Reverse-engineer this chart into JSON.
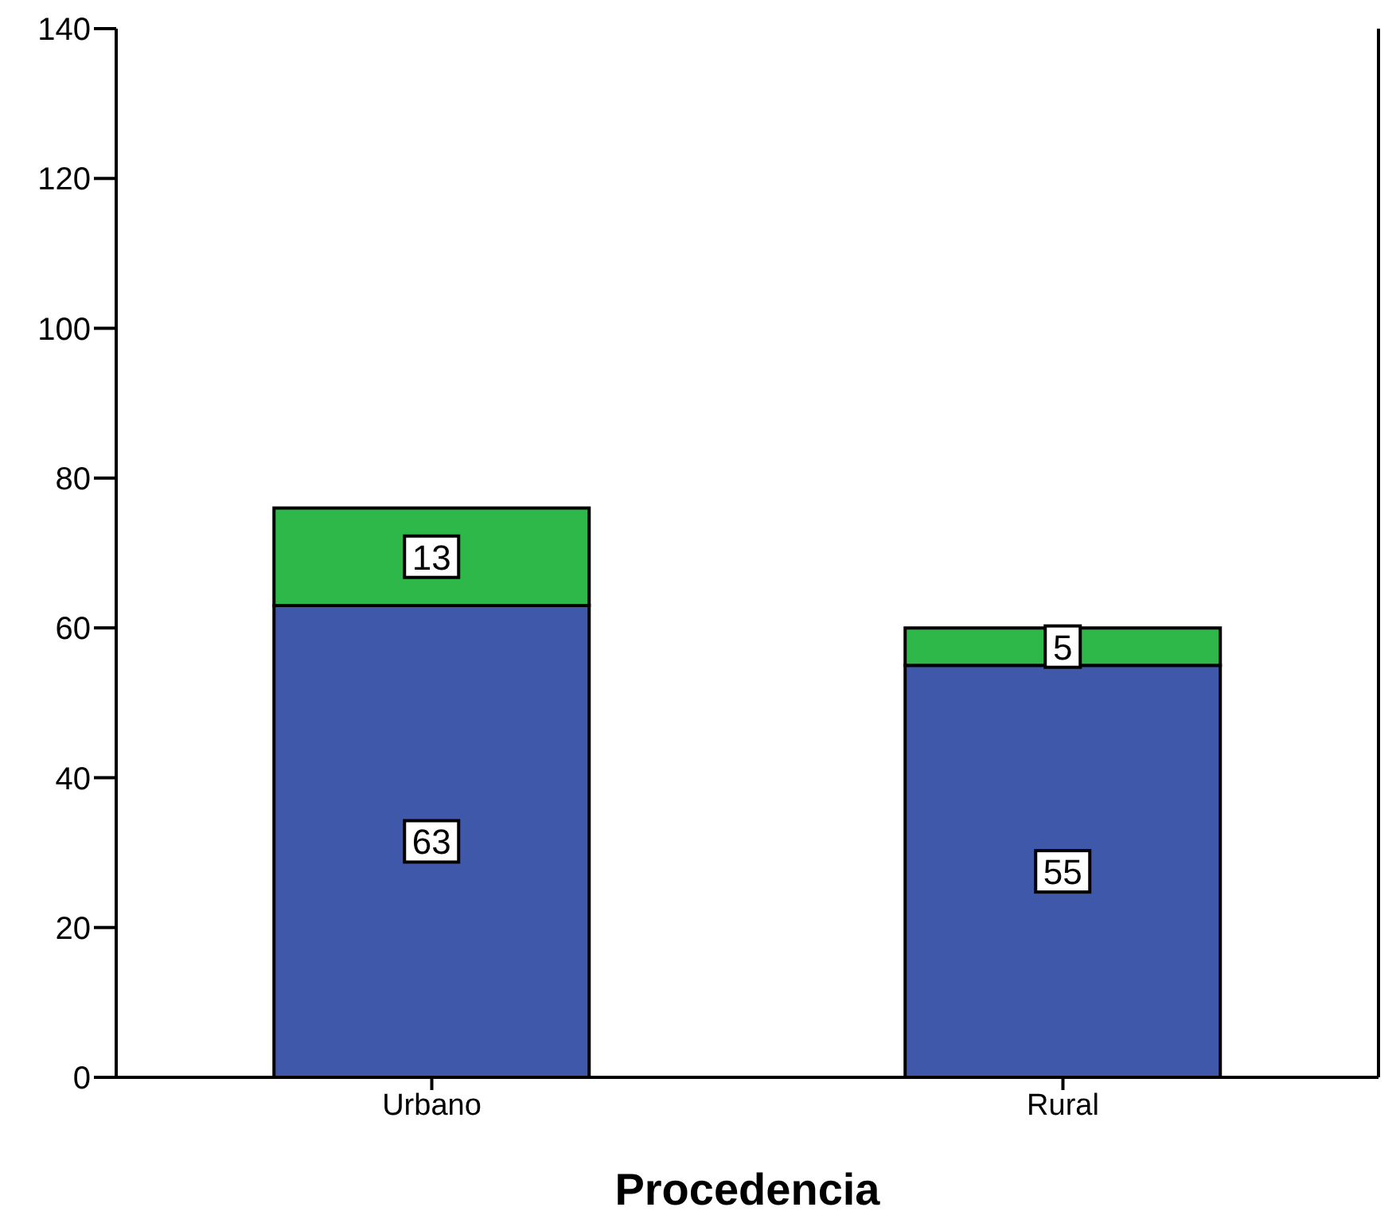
{
  "chart_data": {
    "type": "bar",
    "xlabel": "Procedencia",
    "categories": [
      "Urbano",
      "Rural"
    ],
    "stacked": true,
    "data_labels": true,
    "series": [
      {
        "color": "#3f58aa",
        "values": [
          63,
          55
        ]
      },
      {
        "color": "#2eb84a",
        "values": [
          13,
          5
        ]
      }
    ],
    "ylim": [
      0,
      140
    ],
    "yticks": [
      0,
      20,
      40,
      60,
      80,
      100,
      120,
      140
    ],
    "grid": false,
    "legend": false
  }
}
